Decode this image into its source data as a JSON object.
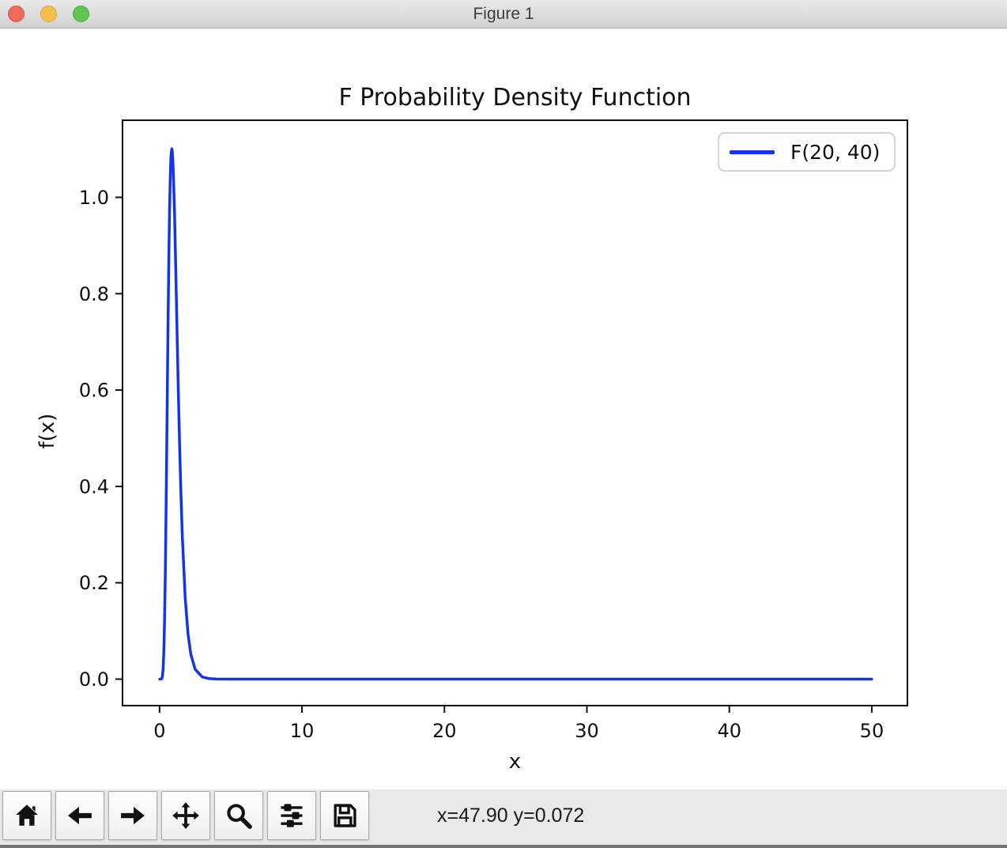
{
  "window": {
    "title": "Figure 1"
  },
  "chart_data": {
    "type": "line",
    "title": "F Probability Density Function",
    "xlabel": "x",
    "ylabel": "f(x)",
    "xlim": [
      -2.6,
      52.5
    ],
    "ylim": [
      -0.055,
      1.16
    ],
    "x_ticklabels": [
      "0",
      "10",
      "20",
      "30",
      "40",
      "50"
    ],
    "y_ticklabels": [
      "0.0",
      "0.2",
      "0.4",
      "0.6",
      "0.8",
      "1.0"
    ],
    "grid": false,
    "legend_position": "upper right",
    "series": [
      {
        "name": "F(20, 40)",
        "color": "#1334EA",
        "x": [
          0.02,
          0.05,
          0.1,
          0.15,
          0.2,
          0.25,
          0.3,
          0.35,
          0.4,
          0.45,
          0.5,
          0.55,
          0.6,
          0.65,
          0.7,
          0.75,
          0.8,
          0.825,
          0.86,
          0.88,
          0.9,
          0.95,
          1.0,
          1.05,
          1.1,
          1.15,
          1.2,
          1.3,
          1.4,
          1.5,
          1.6,
          1.8,
          2.0,
          2.2,
          2.5,
          3.0,
          3.5,
          4.0,
          5.0,
          6.0,
          10,
          20,
          30,
          40,
          50
        ],
        "y": [
          0,
          0,
          0,
          0.0009,
          0.0057,
          0.0218,
          0.0581,
          0.1222,
          0.216,
          0.3359,
          0.4729,
          0.6156,
          0.7523,
          0.8733,
          0.971,
          1.0418,
          1.0848,
          1.0921,
          1.1008,
          1.0986,
          1.0926,
          1.0643,
          1.02,
          0.9688,
          0.8993,
          0.8336,
          0.7593,
          0.6199,
          0.4932,
          0.3847,
          0.2953,
          0.1684,
          0.0933,
          0.0509,
          0.0203,
          0.0044,
          0.001,
          0.0002,
          0,
          0,
          0,
          0,
          0,
          0,
          0
        ]
      }
    ]
  },
  "toolbar": {
    "buttons": [
      {
        "name": "home",
        "icon": "home-icon"
      },
      {
        "name": "back",
        "icon": "arrow-left-icon"
      },
      {
        "name": "forward",
        "icon": "arrow-right-icon"
      },
      {
        "name": "pan",
        "icon": "move-arrows-icon"
      },
      {
        "name": "zoom",
        "icon": "magnifier-icon"
      },
      {
        "name": "configure-subplots",
        "icon": "sliders-icon"
      },
      {
        "name": "save",
        "icon": "floppy-disk-icon"
      }
    ],
    "status": "x=47.90 y=0.072"
  },
  "colors": {
    "line": "#1334EA",
    "traffic_red": "#ED6A5F",
    "traffic_yellow": "#F5BF4F",
    "traffic_green": "#61C554",
    "titlebar_top": "#e9e9e9",
    "titlebar_bottom": "#d2d2d2"
  }
}
